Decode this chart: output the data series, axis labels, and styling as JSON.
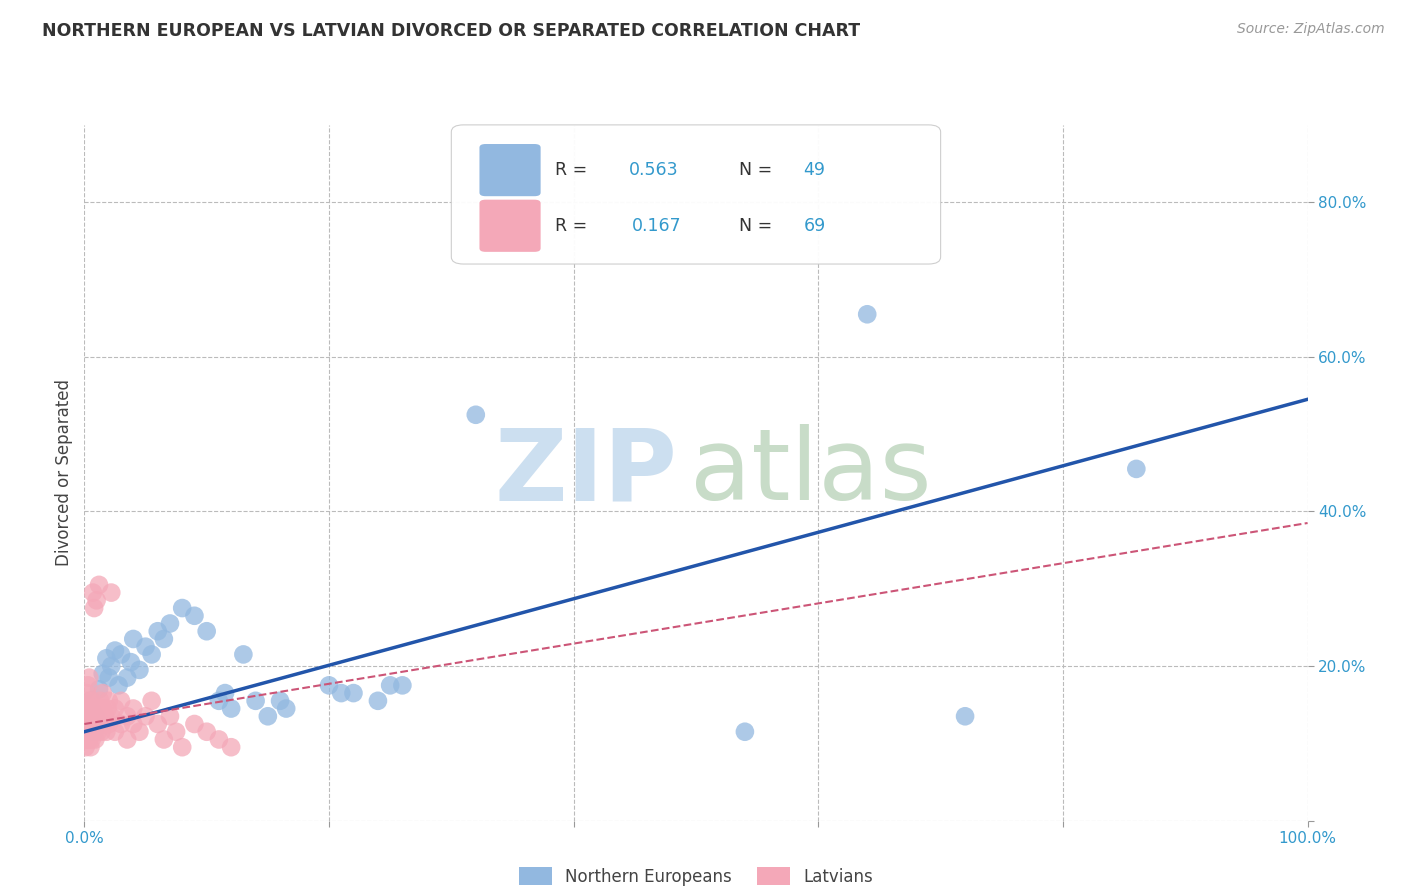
{
  "title": "NORTHERN EUROPEAN VS LATVIAN DIVORCED OR SEPARATED CORRELATION CHART",
  "source": "Source: ZipAtlas.com",
  "ylabel": "Divorced or Separated",
  "legend": {
    "blue_R": "0.563",
    "blue_N": "49",
    "pink_R": "0.167",
    "pink_N": "69"
  },
  "blue_color": "#92b8e0",
  "pink_color": "#f4a8b8",
  "trendline_blue": "#2255aa",
  "trendline_pink": "#cc5577",
  "background": "#ffffff",
  "grid_color": "#bbbbbb",
  "xlim": [
    0.0,
    1.0
  ],
  "ylim": [
    0.0,
    0.9
  ],
  "xtick_positions": [
    0.0,
    0.2,
    0.4,
    0.6,
    0.8,
    1.0
  ],
  "ytick_positions": [
    0.0,
    0.2,
    0.4,
    0.6,
    0.8
  ],
  "blue_points": [
    [
      0.001,
      0.13
    ],
    [
      0.002,
      0.14
    ],
    [
      0.003,
      0.12
    ],
    [
      0.004,
      0.145
    ],
    [
      0.005,
      0.155
    ],
    [
      0.006,
      0.125
    ],
    [
      0.007,
      0.14
    ],
    [
      0.008,
      0.115
    ],
    [
      0.009,
      0.135
    ],
    [
      0.01,
      0.13
    ],
    [
      0.012,
      0.17
    ],
    [
      0.015,
      0.19
    ],
    [
      0.018,
      0.21
    ],
    [
      0.02,
      0.185
    ],
    [
      0.022,
      0.2
    ],
    [
      0.025,
      0.22
    ],
    [
      0.028,
      0.175
    ],
    [
      0.03,
      0.215
    ],
    [
      0.035,
      0.185
    ],
    [
      0.038,
      0.205
    ],
    [
      0.04,
      0.235
    ],
    [
      0.045,
      0.195
    ],
    [
      0.05,
      0.225
    ],
    [
      0.055,
      0.215
    ],
    [
      0.06,
      0.245
    ],
    [
      0.065,
      0.235
    ],
    [
      0.07,
      0.255
    ],
    [
      0.08,
      0.275
    ],
    [
      0.09,
      0.265
    ],
    [
      0.1,
      0.245
    ],
    [
      0.11,
      0.155
    ],
    [
      0.115,
      0.165
    ],
    [
      0.12,
      0.145
    ],
    [
      0.13,
      0.215
    ],
    [
      0.14,
      0.155
    ],
    [
      0.15,
      0.135
    ],
    [
      0.16,
      0.155
    ],
    [
      0.165,
      0.145
    ],
    [
      0.2,
      0.175
    ],
    [
      0.21,
      0.165
    ],
    [
      0.22,
      0.165
    ],
    [
      0.24,
      0.155
    ],
    [
      0.25,
      0.175
    ],
    [
      0.26,
      0.175
    ],
    [
      0.32,
      0.525
    ],
    [
      0.54,
      0.115
    ],
    [
      0.64,
      0.655
    ],
    [
      0.72,
      0.135
    ],
    [
      0.86,
      0.455
    ]
  ],
  "pink_points": [
    [
      0.001,
      0.105
    ],
    [
      0.001,
      0.125
    ],
    [
      0.001,
      0.095
    ],
    [
      0.001,
      0.135
    ],
    [
      0.002,
      0.115
    ],
    [
      0.002,
      0.145
    ],
    [
      0.002,
      0.105
    ],
    [
      0.002,
      0.165
    ],
    [
      0.003,
      0.125
    ],
    [
      0.003,
      0.155
    ],
    [
      0.003,
      0.115
    ],
    [
      0.003,
      0.175
    ],
    [
      0.004,
      0.105
    ],
    [
      0.004,
      0.135
    ],
    [
      0.004,
      0.185
    ],
    [
      0.005,
      0.125
    ],
    [
      0.005,
      0.145
    ],
    [
      0.005,
      0.095
    ],
    [
      0.005,
      0.115
    ],
    [
      0.006,
      0.135
    ],
    [
      0.006,
      0.155
    ],
    [
      0.006,
      0.105
    ],
    [
      0.007,
      0.125
    ],
    [
      0.007,
      0.145
    ],
    [
      0.007,
      0.295
    ],
    [
      0.008,
      0.115
    ],
    [
      0.008,
      0.135
    ],
    [
      0.008,
      0.275
    ],
    [
      0.009,
      0.105
    ],
    [
      0.009,
      0.125
    ],
    [
      0.01,
      0.135
    ],
    [
      0.01,
      0.285
    ],
    [
      0.011,
      0.115
    ],
    [
      0.011,
      0.145
    ],
    [
      0.012,
      0.125
    ],
    [
      0.012,
      0.305
    ],
    [
      0.013,
      0.135
    ],
    [
      0.013,
      0.155
    ],
    [
      0.014,
      0.115
    ],
    [
      0.015,
      0.145
    ],
    [
      0.015,
      0.165
    ],
    [
      0.016,
      0.125
    ],
    [
      0.017,
      0.135
    ],
    [
      0.018,
      0.115
    ],
    [
      0.019,
      0.145
    ],
    [
      0.02,
      0.125
    ],
    [
      0.02,
      0.155
    ],
    [
      0.022,
      0.135
    ],
    [
      0.022,
      0.295
    ],
    [
      0.025,
      0.145
    ],
    [
      0.025,
      0.115
    ],
    [
      0.03,
      0.125
    ],
    [
      0.03,
      0.155
    ],
    [
      0.035,
      0.135
    ],
    [
      0.035,
      0.105
    ],
    [
      0.04,
      0.145
    ],
    [
      0.04,
      0.125
    ],
    [
      0.045,
      0.115
    ],
    [
      0.05,
      0.135
    ],
    [
      0.055,
      0.155
    ],
    [
      0.06,
      0.125
    ],
    [
      0.065,
      0.105
    ],
    [
      0.07,
      0.135
    ],
    [
      0.075,
      0.115
    ],
    [
      0.08,
      0.095
    ],
    [
      0.09,
      0.125
    ],
    [
      0.1,
      0.115
    ],
    [
      0.11,
      0.105
    ],
    [
      0.12,
      0.095
    ]
  ],
  "blue_trend_x": [
    0.0,
    1.0
  ],
  "blue_trend_y": [
    0.115,
    0.545
  ],
  "pink_trend_x": [
    0.0,
    1.0
  ],
  "pink_trend_y": [
    0.125,
    0.385
  ],
  "watermark_zip_color": "#ccdff0",
  "watermark_atlas_color": "#c8dcc8"
}
